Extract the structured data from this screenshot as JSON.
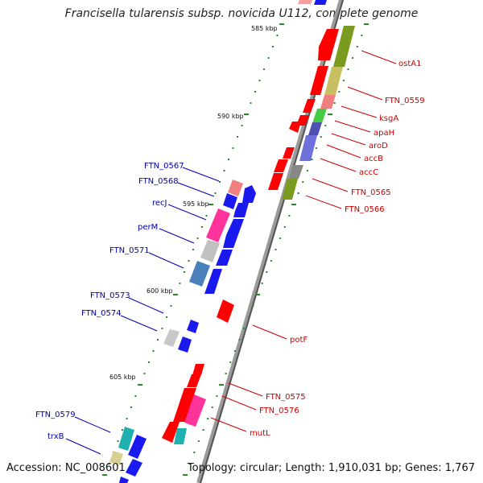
{
  "title": "Francisella tularensis subsp. novicida U112, complete genome",
  "footer": {
    "accession": "Accession: NC_008601",
    "topology": "Topology: circular; Length: 1,910,031 bp; Genes: 1,767"
  },
  "colors": {
    "forward_strand": "#ff0000",
    "reverse_strand": "#0000ee",
    "backbone": "#888888",
    "tick": "#2a8a2a",
    "forward_label": "#cc0000",
    "reverse_label": "#0000aa"
  },
  "ticks": [
    "585 kbp",
    "590 kbp",
    "595 kbp",
    "600 kbp",
    "605 kbp"
  ],
  "forward_genes": [
    "ostA1",
    "FTN_0559",
    "ksgA",
    "apaH",
    "aroD",
    "accB",
    "accC",
    "FTN_0565",
    "FTN_0566",
    "potF",
    "FTN_0575",
    "FTN_0576",
    "mutL"
  ],
  "reverse_genes": [
    "FTN_0567",
    "FTN_0568",
    "recJ",
    "perM",
    "FTN_0571",
    "FTN_0573",
    "FTN_0574",
    "FTN_0579",
    "trxB"
  ]
}
